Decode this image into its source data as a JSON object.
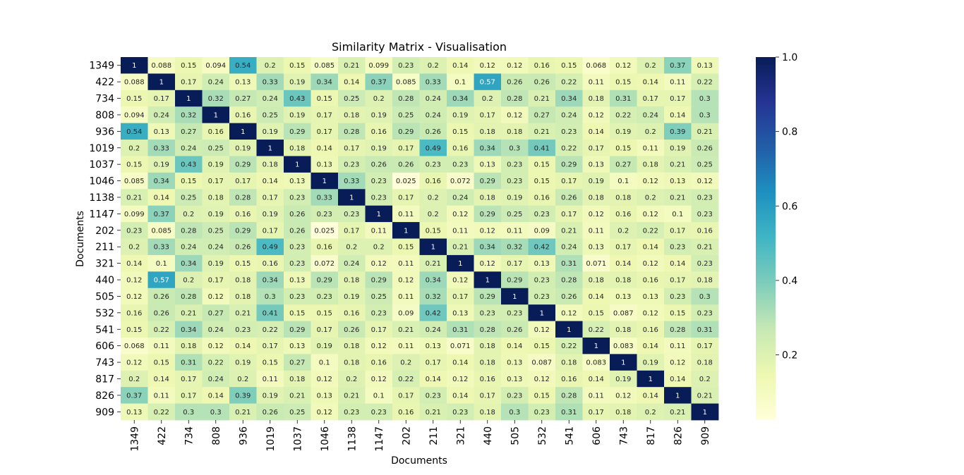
{
  "chart_data": {
    "type": "heatmap",
    "title": "Similarity Matrix - Visualisation",
    "xlabel": "Documents",
    "ylabel": "Documents",
    "labels": [
      "1349",
      "422",
      "734",
      "808",
      "936",
      "1019",
      "1037",
      "1046",
      "1138",
      "1147",
      "202",
      "211",
      "321",
      "440",
      "505",
      "532",
      "541",
      "606",
      "743",
      "817",
      "826",
      "909"
    ],
    "matrix": [
      [
        "1",
        "0.088",
        "0.15",
        "0.094",
        "0.54",
        "0.2",
        "0.15",
        "0.085",
        "0.21",
        "0.099",
        "0.23",
        "0.2",
        "0.14",
        "0.12",
        "0.12",
        "0.16",
        "0.15",
        "0.068",
        "0.12",
        "0.2",
        "0.37",
        "0.13"
      ],
      [
        "0.088",
        "1",
        "0.17",
        "0.24",
        "0.13",
        "0.33",
        "0.19",
        "0.34",
        "0.14",
        "0.37",
        "0.085",
        "0.33",
        "0.1",
        "0.57",
        "0.26",
        "0.26",
        "0.22",
        "0.11",
        "0.15",
        "0.14",
        "0.11",
        "0.22"
      ],
      [
        "0.15",
        "0.17",
        "1",
        "0.32",
        "0.27",
        "0.24",
        "0.43",
        "0.15",
        "0.25",
        "0.2",
        "0.28",
        "0.24",
        "0.34",
        "0.2",
        "0.28",
        "0.21",
        "0.34",
        "0.18",
        "0.31",
        "0.17",
        "0.17",
        "0.3"
      ],
      [
        "0.094",
        "0.24",
        "0.32",
        "1",
        "0.16",
        "0.25",
        "0.19",
        "0.17",
        "0.18",
        "0.19",
        "0.25",
        "0.24",
        "0.19",
        "0.17",
        "0.12",
        "0.27",
        "0.24",
        "0.12",
        "0.22",
        "0.24",
        "0.14",
        "0.3"
      ],
      [
        "0.54",
        "0.13",
        "0.27",
        "0.16",
        "1",
        "0.19",
        "0.29",
        "0.17",
        "0.28",
        "0.16",
        "0.29",
        "0.26",
        "0.15",
        "0.18",
        "0.18",
        "0.21",
        "0.23",
        "0.14",
        "0.19",
        "0.2",
        "0.39",
        "0.21"
      ],
      [
        "0.2",
        "0.33",
        "0.24",
        "0.25",
        "0.19",
        "1",
        "0.18",
        "0.14",
        "0.17",
        "0.19",
        "0.17",
        "0.49",
        "0.16",
        "0.34",
        "0.3",
        "0.41",
        "0.22",
        "0.17",
        "0.15",
        "0.11",
        "0.19",
        "0.26"
      ],
      [
        "0.15",
        "0.19",
        "0.43",
        "0.19",
        "0.29",
        "0.18",
        "1",
        "0.13",
        "0.23",
        "0.26",
        "0.26",
        "0.23",
        "0.23",
        "0.13",
        "0.23",
        "0.15",
        "0.29",
        "0.13",
        "0.27",
        "0.18",
        "0.21",
        "0.25"
      ],
      [
        "0.085",
        "0.34",
        "0.15",
        "0.17",
        "0.17",
        "0.14",
        "0.13",
        "1",
        "0.33",
        "0.23",
        "0.025",
        "0.16",
        "0.072",
        "0.29",
        "0.23",
        "0.15",
        "0.17",
        "0.19",
        "0.1",
        "0.12",
        "0.13",
        "0.12"
      ],
      [
        "0.21",
        "0.14",
        "0.25",
        "0.18",
        "0.28",
        "0.17",
        "0.23",
        "0.33",
        "1",
        "0.23",
        "0.17",
        "0.2",
        "0.24",
        "0.18",
        "0.19",
        "0.16",
        "0.26",
        "0.18",
        "0.18",
        "0.2",
        "0.21",
        "0.23"
      ],
      [
        "0.099",
        "0.37",
        "0.2",
        "0.19",
        "0.16",
        "0.19",
        "0.26",
        "0.23",
        "0.23",
        "1",
        "0.11",
        "0.2",
        "0.12",
        "0.29",
        "0.25",
        "0.23",
        "0.17",
        "0.12",
        "0.16",
        "0.12",
        "0.1",
        "0.23"
      ],
      [
        "0.23",
        "0.085",
        "0.28",
        "0.25",
        "0.29",
        "0.17",
        "0.26",
        "0.025",
        "0.17",
        "0.11",
        "1",
        "0.15",
        "0.11",
        "0.12",
        "0.11",
        "0.09",
        "0.21",
        "0.11",
        "0.2",
        "0.22",
        "0.17",
        "0.16"
      ],
      [
        "0.2",
        "0.33",
        "0.24",
        "0.24",
        "0.26",
        "0.49",
        "0.23",
        "0.16",
        "0.2",
        "0.2",
        "0.15",
        "1",
        "0.21",
        "0.34",
        "0.32",
        "0.42",
        "0.24",
        "0.13",
        "0.17",
        "0.14",
        "0.23",
        "0.21"
      ],
      [
        "0.14",
        "0.1",
        "0.34",
        "0.19",
        "0.15",
        "0.16",
        "0.23",
        "0.072",
        "0.24",
        "0.12",
        "0.11",
        "0.21",
        "1",
        "0.12",
        "0.17",
        "0.13",
        "0.31",
        "0.071",
        "0.14",
        "0.12",
        "0.14",
        "0.23"
      ],
      [
        "0.12",
        "0.57",
        "0.2",
        "0.17",
        "0.18",
        "0.34",
        "0.13",
        "0.29",
        "0.18",
        "0.29",
        "0.12",
        "0.34",
        "0.12",
        "1",
        "0.29",
        "0.23",
        "0.28",
        "0.18",
        "0.18",
        "0.16",
        "0.17",
        "0.18"
      ],
      [
        "0.12",
        "0.26",
        "0.28",
        "0.12",
        "0.18",
        "0.3",
        "0.23",
        "0.23",
        "0.19",
        "0.25",
        "0.11",
        "0.32",
        "0.17",
        "0.29",
        "1",
        "0.23",
        "0.26",
        "0.14",
        "0.13",
        "0.13",
        "0.23",
        "0.3"
      ],
      [
        "0.16",
        "0.26",
        "0.21",
        "0.27",
        "0.21",
        "0.41",
        "0.15",
        "0.15",
        "0.16",
        "0.23",
        "0.09",
        "0.42",
        "0.13",
        "0.23",
        "0.23",
        "1",
        "0.12",
        "0.15",
        "0.087",
        "0.12",
        "0.15",
        "0.23"
      ],
      [
        "0.15",
        "0.22",
        "0.34",
        "0.24",
        "0.23",
        "0.22",
        "0.29",
        "0.17",
        "0.26",
        "0.17",
        "0.21",
        "0.24",
        "0.31",
        "0.28",
        "0.26",
        "0.12",
        "1",
        "0.22",
        "0.18",
        "0.16",
        "0.28",
        "0.31"
      ],
      [
        "0.068",
        "0.11",
        "0.18",
        "0.12",
        "0.14",
        "0.17",
        "0.13",
        "0.19",
        "0.18",
        "0.12",
        "0.11",
        "0.13",
        "0.071",
        "0.18",
        "0.14",
        "0.15",
        "0.22",
        "1",
        "0.083",
        "0.14",
        "0.11",
        "0.17"
      ],
      [
        "0.12",
        "0.15",
        "0.31",
        "0.22",
        "0.19",
        "0.15",
        "0.27",
        "0.1",
        "0.18",
        "0.16",
        "0.2",
        "0.17",
        "0.14",
        "0.18",
        "0.13",
        "0.087",
        "0.18",
        "0.083",
        "1",
        "0.19",
        "0.12",
        "0.18"
      ],
      [
        "0.2",
        "0.14",
        "0.17",
        "0.24",
        "0.2",
        "0.11",
        "0.18",
        "0.12",
        "0.2",
        "0.12",
        "0.22",
        "0.14",
        "0.12",
        "0.16",
        "0.13",
        "0.12",
        "0.16",
        "0.14",
        "0.19",
        "1",
        "0.14",
        "0.2"
      ],
      [
        "0.37",
        "0.11",
        "0.17",
        "0.14",
        "0.39",
        "0.19",
        "0.21",
        "0.13",
        "0.21",
        "0.1",
        "0.17",
        "0.23",
        "0.14",
        "0.17",
        "0.23",
        "0.15",
        "0.28",
        "0.11",
        "0.12",
        "0.14",
        "1",
        "0.21"
      ],
      [
        "0.13",
        "0.22",
        "0.3",
        "0.3",
        "0.21",
        "0.26",
        "0.25",
        "0.12",
        "0.23",
        "0.23",
        "0.16",
        "0.21",
        "0.23",
        "0.18",
        "0.3",
        "0.23",
        "0.31",
        "0.17",
        "0.18",
        "0.2",
        "0.21",
        "1"
      ]
    ],
    "colorbar": {
      "colormap": "YlGnBu",
      "range": [
        0.025,
        1.0
      ],
      "ticks": [
        "0.2",
        "0.4",
        "0.6",
        "0.8",
        "1.0"
      ]
    },
    "colors": [
      "#ffffd9",
      "#edf8b1",
      "#c7e9b4",
      "#7fcdbb",
      "#41b6c4",
      "#1d91c0",
      "#225ea8",
      "#253494",
      "#081d58"
    ]
  }
}
